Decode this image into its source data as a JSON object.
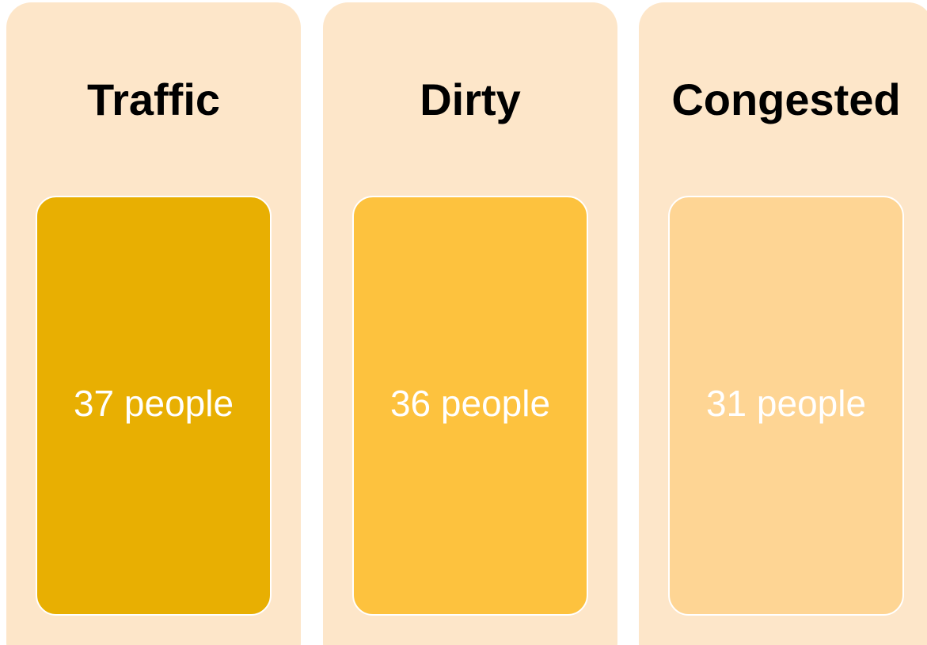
{
  "cards": [
    {
      "title": "Traffic",
      "text": "37 people",
      "color": "#e8af02"
    },
    {
      "title": "Dirty",
      "text": "36 people",
      "color": "#fdc23e"
    },
    {
      "title": "Congested",
      "text": "31 people",
      "color": "#fed594"
    }
  ]
}
